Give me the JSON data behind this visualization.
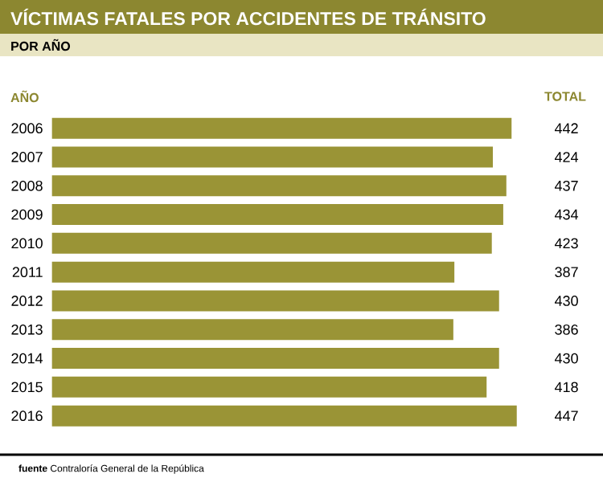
{
  "chart_data": {
    "type": "bar",
    "orientation": "horizontal",
    "title": "VÍCTIMAS FATALES POR ACCIDENTES DE TRÁNSITO",
    "subtitle": "POR AÑO",
    "ylabel": "AÑO",
    "categories": [
      "2006",
      "2007",
      "2008",
      "2009",
      "2010",
      "2011",
      "2012",
      "2013",
      "2014",
      "2015",
      "2016"
    ],
    "values": [
      442,
      424,
      437,
      434,
      423,
      387,
      430,
      386,
      430,
      418,
      447
    ],
    "color": "#9a9436",
    "data_labels": true,
    "annotations": [
      "TOTAL",
      "**fuente** Contraloría General de la República"
    ]
  }
}
